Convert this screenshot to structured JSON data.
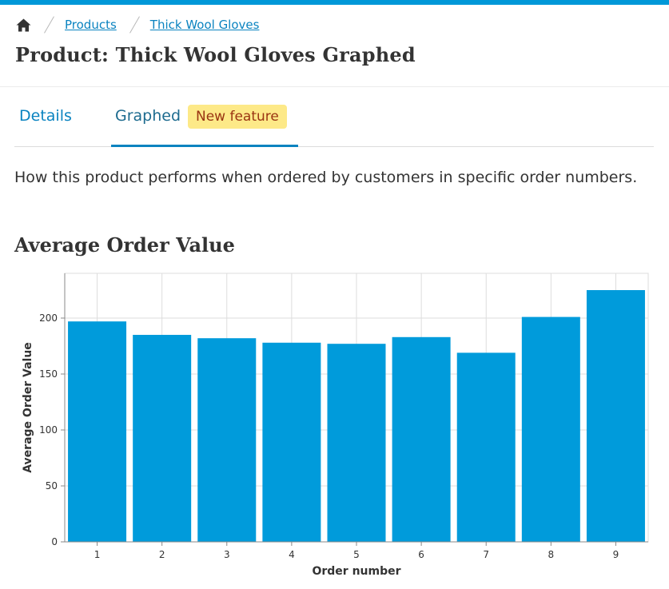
{
  "breadcrumb": {
    "items": [
      "Products",
      "Thick Wool Gloves"
    ]
  },
  "page": {
    "title": "Product: Thick Wool Gloves Graphed"
  },
  "tabs": {
    "details_label": "Details",
    "graphed_label": "Graphed",
    "graphed_badge": "New feature"
  },
  "content": {
    "intro": "How this product performs when ordered by customers in specific order numbers.",
    "section_title": "Average Order Value"
  },
  "colors": {
    "accent": "#0098d8",
    "bar": "#009bdb",
    "badge_bg": "#fde988",
    "badge_text": "#9a3412"
  },
  "chart_data": {
    "type": "bar",
    "categories": [
      "1",
      "2",
      "3",
      "4",
      "5",
      "6",
      "7",
      "8",
      "9"
    ],
    "values": [
      197,
      185,
      182,
      178,
      177,
      183,
      169,
      201,
      225
    ],
    "xlabel": "Order number",
    "ylabel": "Average Order Value",
    "ylim": [
      0,
      240
    ],
    "yticks": [
      0,
      50,
      100,
      150,
      200
    ],
    "grid": true
  }
}
